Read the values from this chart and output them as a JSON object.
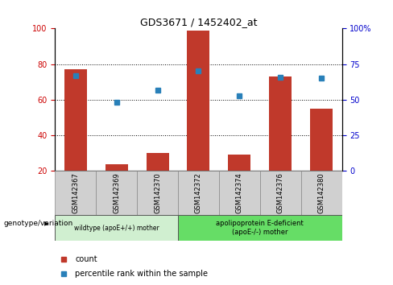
{
  "title": "GDS3671 / 1452402_at",
  "samples": [
    "GSM142367",
    "GSM142369",
    "GSM142370",
    "GSM142372",
    "GSM142374",
    "GSM142376",
    "GSM142380"
  ],
  "counts": [
    77,
    24,
    30,
    99,
    29,
    73,
    55
  ],
  "percentiles": [
    67,
    48,
    57,
    70,
    53,
    66,
    65
  ],
  "baseline": 20,
  "ylim_left": [
    20,
    100
  ],
  "ylim_right": [
    0,
    100
  ],
  "yticks_left": [
    20,
    40,
    60,
    80,
    100
  ],
  "ytick_labels_right": [
    "0",
    "25",
    "50",
    "75",
    "100%"
  ],
  "bar_color": "#c0392b",
  "square_color": "#2980b9",
  "bar_width": 0.55,
  "group1_label": "wildtype (apoE+/+) mother",
  "group1_count": 3,
  "group1_color": "#d0efd0",
  "group2_label": "apolipoprotein E-deficient\n(apoE-/-) mother",
  "group2_count": 4,
  "group2_color": "#66dd66",
  "genotype_label": "genotype/variation",
  "legend_count_label": "count",
  "legend_percentile_label": "percentile rank within the sample",
  "tick_label_color_left": "#cc0000",
  "tick_label_color_right": "#0000cc",
  "sample_box_color": "#d0d0d0"
}
